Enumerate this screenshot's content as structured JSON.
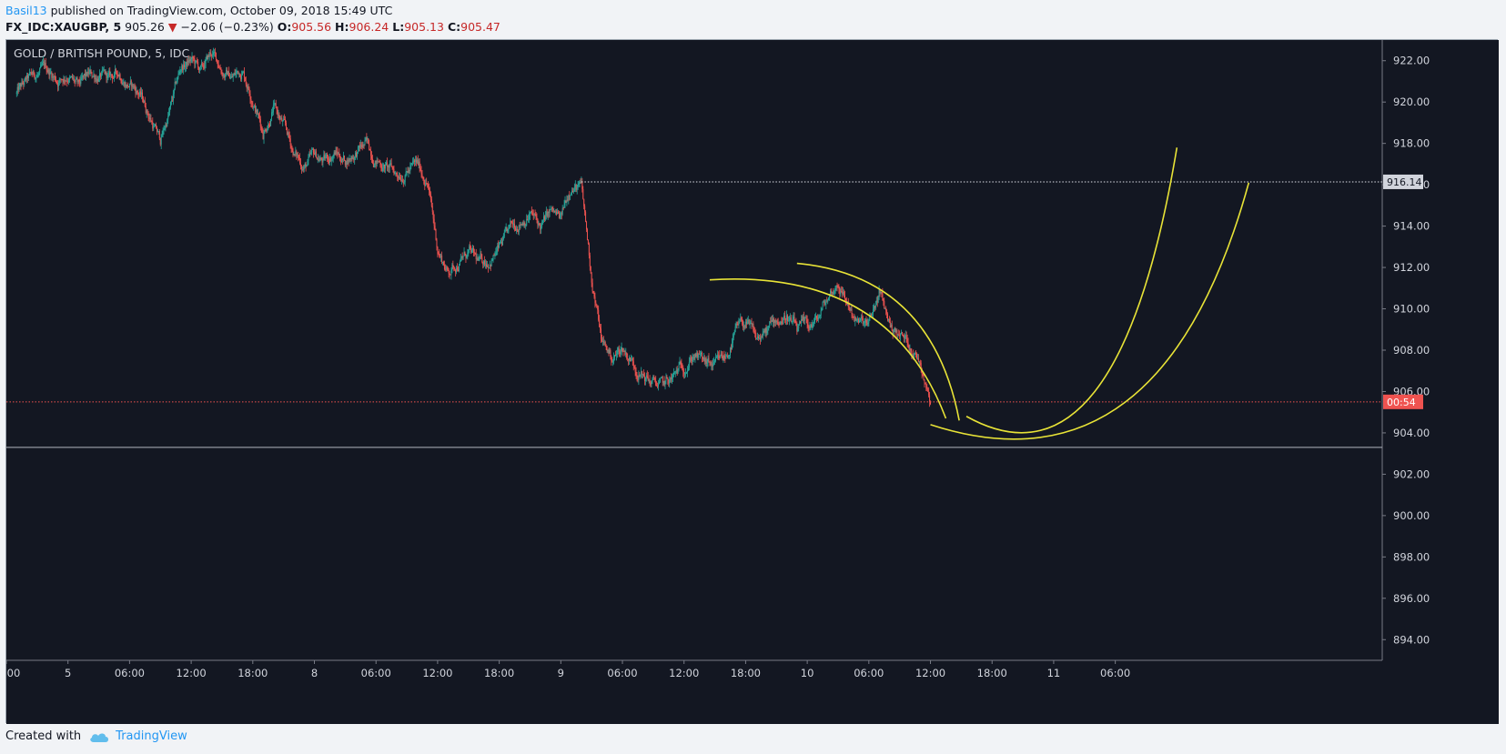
{
  "header": {
    "user": "Basil13",
    "published": " published on TradingView.com, October 09, 2018 15:49 UTC",
    "symbol": "FX_IDC:XAUGBP, 5",
    "price": "905.26",
    "change": "−2.06 (−0.23%)",
    "o_label": "O:",
    "o_value": "905.56",
    "h_label": "H:",
    "h_value": "906.24",
    "l_label": "L:",
    "l_value": "905.13",
    "c_label": "C:",
    "c_value": "905.47"
  },
  "footer": {
    "created_with": "Created with",
    "brand": "TradingView"
  },
  "chart_data": {
    "type": "candlestick",
    "title": "GOLD / BRITISH POUND, 5, IDC",
    "y_range": [
      893.0,
      923.0
    ],
    "y_ticks": [
      "922.00",
      "920.00",
      "918.00",
      "916.00",
      "914.00",
      "912.00",
      "910.00",
      "908.00",
      "906.00",
      "904.00",
      "902.00",
      "900.00",
      "898.00",
      "896.00",
      "894.00"
    ],
    "x_ticks": [
      ":00",
      "5",
      "06:00",
      "12:00",
      "18:00",
      "8",
      "06:00",
      "12:00",
      "18:00",
      "9",
      "06:00",
      "12:00",
      "18:00",
      "10",
      "06:00",
      "12:00",
      "18:00",
      "11",
      "06:00"
    ],
    "x_range_hours": [
      -1,
      133
    ],
    "price_path": [
      [
        0,
        920.4
      ],
      [
        1,
        920.9
      ],
      [
        2,
        921.3
      ],
      [
        3,
        921.5
      ],
      [
        4,
        921.1
      ],
      [
        5,
        921.4
      ],
      [
        6,
        920.6
      ],
      [
        7,
        921.1
      ],
      [
        8,
        921.3
      ],
      [
        9,
        921.0
      ],
      [
        10,
        921.4
      ],
      [
        11,
        920.9
      ],
      [
        12,
        920.4
      ],
      [
        13,
        919.3
      ],
      [
        14,
        918.1
      ],
      [
        15,
        919.7
      ],
      [
        16,
        921.6
      ],
      [
        17,
        922.0
      ],
      [
        18,
        921.4
      ],
      [
        19,
        922.3
      ],
      [
        20,
        921.6
      ],
      [
        21,
        921.2
      ],
      [
        22,
        921.6
      ],
      [
        23,
        920.3
      ],
      [
        24,
        918.6
      ],
      [
        25,
        919.8
      ],
      [
        26,
        918.8
      ],
      [
        27,
        917.5
      ],
      [
        28,
        916.9
      ],
      [
        29,
        917.3
      ],
      [
        30,
        917.1
      ],
      [
        31,
        917.6
      ],
      [
        32,
        917.2
      ],
      [
        33,
        917.6
      ],
      [
        34,
        917.9
      ],
      [
        35,
        917.3
      ],
      [
        36,
        916.9
      ],
      [
        37,
        916.5
      ],
      [
        38,
        916.8
      ],
      [
        39,
        916.9
      ],
      [
        40,
        916.2
      ],
      [
        41,
        912.9
      ],
      [
        42,
        911.8
      ],
      [
        43,
        912.3
      ],
      [
        44,
        912.7
      ],
      [
        45,
        912.1
      ],
      [
        46,
        912.4
      ],
      [
        47,
        912.9
      ],
      [
        48,
        913.6
      ],
      [
        49,
        914.3
      ],
      [
        50,
        914.7
      ],
      [
        51,
        913.9
      ],
      [
        52,
        914.6
      ],
      [
        53,
        914.2
      ],
      [
        54,
        916.1
      ],
      [
        55,
        915.8
      ],
      [
        56,
        911.5
      ],
      [
        57,
        908.4
      ],
      [
        58,
        907.6
      ],
      [
        59,
        908.1
      ],
      [
        60,
        907.5
      ],
      [
        61,
        906.8
      ],
      [
        62,
        906.4
      ],
      [
        63,
        906.2
      ],
      [
        64,
        906.6
      ],
      [
        65,
        907.3
      ],
      [
        66,
        907.9
      ],
      [
        67,
        907.3
      ],
      [
        68,
        907.1
      ],
      [
        69,
        907.5
      ],
      [
        70,
        908.8
      ],
      [
        71,
        909.3
      ],
      [
        72,
        908.4
      ],
      [
        73,
        908.8
      ],
      [
        74,
        909.4
      ],
      [
        75,
        909.7
      ],
      [
        76,
        908.9
      ],
      [
        77,
        909.0
      ],
      [
        78,
        909.4
      ],
      [
        79,
        910.5
      ],
      [
        80,
        911.3
      ],
      [
        81,
        910.2
      ],
      [
        82,
        909.3
      ],
      [
        83,
        909.1
      ],
      [
        84,
        910.7
      ],
      [
        85,
        909.3
      ],
      [
        86,
        908.7
      ],
      [
        87,
        908.3
      ],
      [
        88,
        907.5
      ],
      [
        89,
        905.8
      ]
    ],
    "horizontal_lines": [
      {
        "name": "dotted-white",
        "price": 916.14,
        "style": "dotted",
        "color": "#e0e3eb",
        "start_hour": 55
      },
      {
        "name": "current-price",
        "price": 905.5,
        "style": "dotted",
        "color": "#ef5350",
        "start_hour": -1
      },
      {
        "name": "support",
        "price": 903.3,
        "style": "solid",
        "color": "#b2b5be",
        "start_hour": -1
      }
    ],
    "price_labels": [
      {
        "text": "916.14",
        "price": 916.14,
        "bg": "#d1d4dc",
        "fg": "#131722"
      },
      {
        "text": "00:54",
        "price": 905.5,
        "bg": "#ef5350",
        "fg": "#ffffff"
      }
    ],
    "drawings": [
      {
        "name": "arc-1",
        "color": "#e8e337",
        "points": [
          [
            67.5,
            911.4
          ],
          [
            82,
            910
          ],
          [
            90.5,
            904.7
          ]
        ]
      },
      {
        "name": "arc-2",
        "color": "#e8e337",
        "points": [
          [
            76,
            912.2
          ],
          [
            86.5,
            910
          ],
          [
            91.8,
            904.6
          ]
        ]
      },
      {
        "name": "curve-up-1",
        "color": "#e8e337",
        "points": [
          [
            92.5,
            904.8
          ],
          [
            105,
            906
          ],
          [
            113,
            917.8
          ]
        ]
      },
      {
        "name": "curve-up-2",
        "color": "#e8e337",
        "points": [
          [
            89,
            904.4
          ],
          [
            108,
            905.5
          ],
          [
            120,
            916.1
          ]
        ]
      }
    ],
    "colors": {
      "up": "#26a69a",
      "down": "#ef5350",
      "background": "#131722",
      "axis_text": "#d1d4dc"
    }
  }
}
